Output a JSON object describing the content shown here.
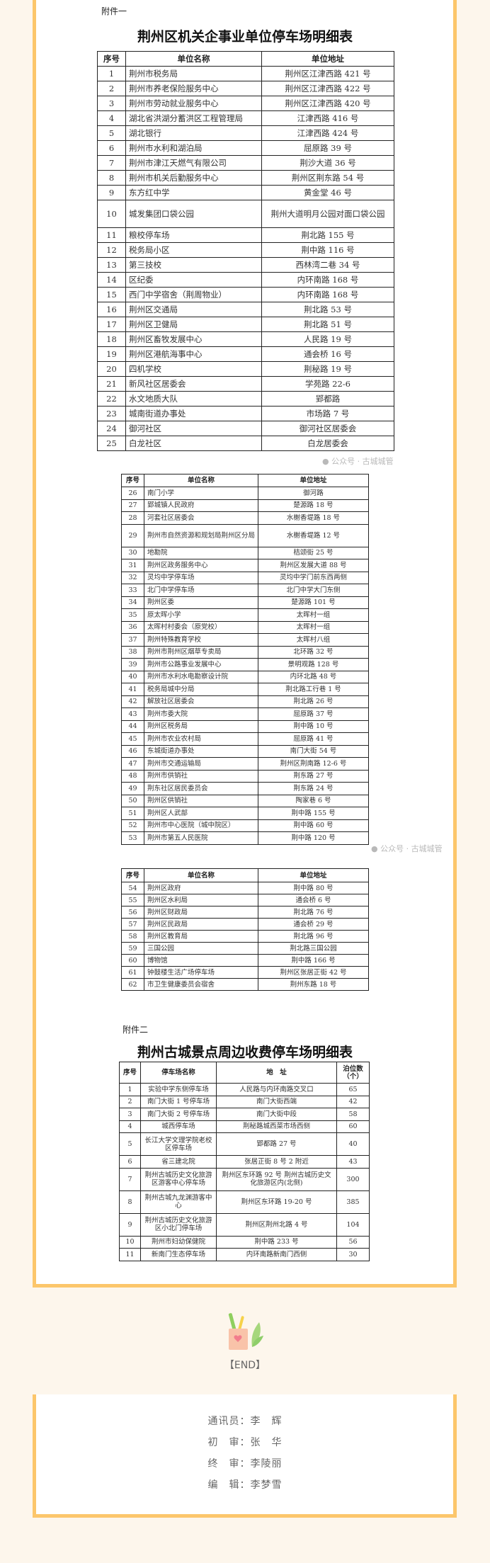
{
  "annex1": {
    "label": "附件一",
    "title": "荆州区机关企事业单位停车场明细表",
    "headers": [
      "序号",
      "单位名称",
      "单位地址"
    ],
    "rows": [
      [
        "1",
        "荆州市税务局",
        "荆州区江津西路 421 号"
      ],
      [
        "2",
        "荆州市养老保险服务中心",
        "荆州区江津西路 422 号"
      ],
      [
        "3",
        "荆州市劳动就业服务中心",
        "荆州区江津西路 420 号"
      ],
      [
        "4",
        "湖北省洪湖分蓄洪区工程管理局",
        "江津西路 416 号"
      ],
      [
        "5",
        "湖北银行",
        "江津西路 424 号"
      ],
      [
        "6",
        "荆州市水利和湖泊局",
        "屈原路 39 号"
      ],
      [
        "7",
        "荆州市津江天燃气有限公司",
        "荆沙大道 36 号"
      ],
      [
        "8",
        "荆州市机关后勤服务中心",
        "荆州区荆东路 54 号"
      ],
      [
        "9",
        "东方红中学",
        "黄金堂 46 号"
      ],
      [
        "10",
        "城发集团口袋公园",
        "荆州大道明月公园对面口袋公园"
      ],
      [
        "11",
        "粮校停车场",
        "荆北路 155 号"
      ],
      [
        "12",
        "税务局小区",
        "荆中路 116 号"
      ],
      [
        "13",
        "第三技校",
        "西林湾二巷 34 号"
      ],
      [
        "14",
        "区纪委",
        "内环南路 168 号"
      ],
      [
        "15",
        "西门中学宿舍（荆周物业）",
        "内环南路 168 号"
      ],
      [
        "16",
        "荆州区交通局",
        "荆北路 53 号"
      ],
      [
        "17",
        "荆州区卫健局",
        "荆北路 51 号"
      ],
      [
        "18",
        "荆州区畜牧发展中心",
        "人民路 19 号"
      ],
      [
        "19",
        "荆州区港航海事中心",
        "通会桥 16 号"
      ],
      [
        "20",
        "四机学校",
        "荆秘路 19 号"
      ],
      [
        "21",
        "新风社区居委会",
        "学苑路 22-6"
      ],
      [
        "22",
        "水文地质大队",
        "郢都路"
      ],
      [
        "23",
        "城南街道办事处",
        "市场路 7 号"
      ],
      [
        "24",
        "御河社区",
        "御河社区居委会"
      ],
      [
        "25",
        "白龙社区",
        "白龙居委会"
      ]
    ],
    "rows2": [
      [
        "26",
        "南门小学",
        "御河路"
      ],
      [
        "27",
        "郢城镇人民政府",
        "楚源路 18 号"
      ],
      [
        "28",
        "河套社区居委会",
        "水榭香堤路 18 号"
      ],
      [
        "29",
        "荆州市自然资源和规划局荆州区分局",
        "水榭香堤路 12 号"
      ],
      [
        "30",
        "地勘院",
        "桔颂街 25 号"
      ],
      [
        "31",
        "荆州区政务服务中心",
        "荆州区发展大道 88 号"
      ],
      [
        "32",
        "灵均中学停车场",
        "灵均中学门前东西两侧"
      ],
      [
        "33",
        "北门中学停车场",
        "北门中学大门东侧"
      ],
      [
        "34",
        "荆州区委",
        "楚源路 101 号"
      ],
      [
        "35",
        "原太晖小学",
        "太晖村一组"
      ],
      [
        "36",
        "太晖村村委会（原党校）",
        "太晖村一组"
      ],
      [
        "37",
        "荆州特殊教育学校",
        "太晖村八组"
      ],
      [
        "38",
        "荆州市荆州区烟草专卖局",
        "北环路 32 号"
      ],
      [
        "39",
        "荆州市公路事业发展中心",
        "景明观路 128 号"
      ],
      [
        "40",
        "荆州市水利水电勘察设计院",
        "内环北路 48 号"
      ],
      [
        "41",
        "税务局城中分局",
        "荆北路工行巷 1 号"
      ],
      [
        "42",
        "解放社区居委会",
        "荆北路 26 号"
      ],
      [
        "43",
        "荆州市委大院",
        "屈原路 37 号"
      ],
      [
        "44",
        "荆州区税务局",
        "荆中路 10 号"
      ],
      [
        "45",
        "荆州市农业农村局",
        "屈原路 41 号"
      ],
      [
        "46",
        "东城街道办事处",
        "南门大街 54 号"
      ],
      [
        "47",
        "荆州市交通运输局",
        "荆州区荆南路 12-6 号"
      ],
      [
        "48",
        "荆州市供销社",
        "荆东路 27 号"
      ],
      [
        "49",
        "荆东社区居民委员会",
        "荆东路 24 号"
      ],
      [
        "50",
        "荆州区供销社",
        "陶家巷 6 号"
      ],
      [
        "51",
        "荆州区人武部",
        "荆中路 155 号"
      ],
      [
        "52",
        "荆州市中心医院（城中院区）",
        "荆中路 60 号"
      ],
      [
        "53",
        "荆州市第五人民医院",
        "荆中路 120 号"
      ]
    ],
    "rows3": [
      [
        "54",
        "荆州区政府",
        "荆中路 80 号"
      ],
      [
        "55",
        "荆州区水利局",
        "通会桥 6 号"
      ],
      [
        "56",
        "荆州区财政局",
        "荆北路 76 号"
      ],
      [
        "57",
        "荆州区民政局",
        "通会桥 29 号"
      ],
      [
        "58",
        "荆州区教育局",
        "荆北路 96 号"
      ],
      [
        "59",
        "三国公园",
        "荆北路三国公园"
      ],
      [
        "60",
        "博物馆",
        "荆中路 166 号"
      ],
      [
        "61",
        "钟鼓楼生活广场停车场",
        "荆州区张居正街 42 号"
      ],
      [
        "62",
        "市卫生健康委员会宿舍",
        "荆州东路 18 号"
      ]
    ]
  },
  "annex2": {
    "label": "附件二",
    "title": "荆州古城景点周边收费停车场明细表",
    "headers": [
      "序号",
      "停车场名称",
      "地　址",
      "泊位数（个）"
    ],
    "rows": [
      [
        "1",
        "实验中学东侧停车场",
        "人民路与内环南路交叉口",
        "65"
      ],
      [
        "2",
        "南门大街 1 号停车场",
        "南门大街西端",
        "42"
      ],
      [
        "3",
        "南门大街 2 号停车场",
        "南门大街中段",
        "58"
      ],
      [
        "4",
        "城西停车场",
        "荆秘路城西菜市场西侧",
        "60"
      ],
      [
        "5",
        "长江大学文理学院老校区停车场",
        "郢都路 27 号",
        "40"
      ],
      [
        "6",
        "省三建北院",
        "张居正街 8 号 2 附近",
        "43"
      ],
      [
        "7",
        "荆州古城历史文化旅游区游客中心停车场",
        "荆州区东环路 92 号 荆州古城历史文化旅游区内(北侧)",
        "300"
      ],
      [
        "8",
        "荆州古城九龙渊游客中心",
        "荆州区东环路 19-20 号",
        "385"
      ],
      [
        "9",
        "荆州古城历史文化旅游区小北门停车场",
        "荆州区荆州北路 4 号",
        "104"
      ],
      [
        "10",
        "荆州市妇幼保健院",
        "荆中路 233 号",
        "56"
      ],
      [
        "11",
        "新南门生态停车场",
        "内环南路新南门西侧",
        "30"
      ]
    ]
  },
  "watermark": "公众号 · 古城城管",
  "end_label": "【END】",
  "credits": [
    {
      "role": "通讯员：",
      "name": "李　辉"
    },
    {
      "role": "初　审：",
      "name": "张　华"
    },
    {
      "role": "终　审：",
      "name": "李陵丽"
    },
    {
      "role": "编　辑：",
      "name": "李梦雪"
    }
  ],
  "colors": {
    "frame": "#fcc66b",
    "background": "#fdf6ec"
  }
}
